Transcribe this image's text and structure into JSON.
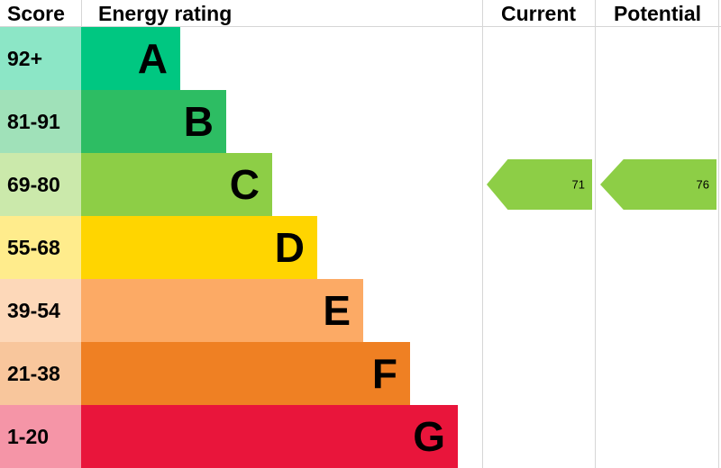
{
  "header": {
    "score": "Score",
    "energy_rating": "Energy rating",
    "current": "Current",
    "potential": "Potential"
  },
  "bands": [
    {
      "score": "92+",
      "letter": "A",
      "color": "#00c781",
      "tint": "#8ce6c6"
    },
    {
      "score": "81-91",
      "letter": "B",
      "color": "#2dbd63",
      "tint": "#a0e1b9"
    },
    {
      "score": "69-80",
      "letter": "C",
      "color": "#8dce46",
      "tint": "#cbe9ab"
    },
    {
      "score": "55-68",
      "letter": "D",
      "color": "#ffd500",
      "tint": "#ffec8c"
    },
    {
      "score": "39-54",
      "letter": "E",
      "color": "#fcaa65",
      "tint": "#fdd8b9"
    },
    {
      "score": "21-38",
      "letter": "F",
      "color": "#ef8023",
      "tint": "#f8c69c"
    },
    {
      "score": "1-20",
      "letter": "G",
      "color": "#e9153b",
      "tint": "#f595a7"
    }
  ],
  "current": {
    "value": "71",
    "color": "#8dce46"
  },
  "potential": {
    "value": "76",
    "color": "#8dce46"
  },
  "chart_data": {
    "type": "bar",
    "title": "Energy rating",
    "categories": [
      "A",
      "B",
      "C",
      "D",
      "E",
      "F",
      "G"
    ],
    "score_ranges": [
      "92+",
      "81-91",
      "69-80",
      "55-68",
      "39-54",
      "21-38",
      "1-20"
    ],
    "band_colors": [
      "#00c781",
      "#2dbd63",
      "#8dce46",
      "#ffd500",
      "#fcaa65",
      "#ef8023",
      "#e9153b"
    ],
    "bar_relative_lengths": [
      110,
      161,
      212,
      262,
      313,
      365,
      418
    ],
    "current_rating": 71,
    "current_band": "C",
    "potential_rating": 76,
    "potential_band": "C",
    "legend_position": "none",
    "grid": false
  }
}
